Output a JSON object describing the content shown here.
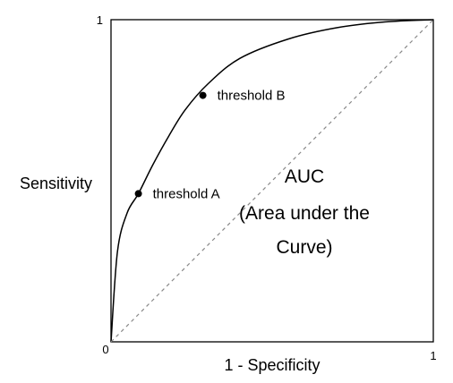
{
  "chart_data": {
    "type": "line",
    "xlabel": "1 - Specificity",
    "ylabel": "Sensitivity",
    "xlim": [
      0,
      1
    ],
    "ylim": [
      0,
      1
    ],
    "ticks": {
      "x_min": "0",
      "x_max": "1",
      "y_max": "1"
    },
    "series": [
      {
        "style": "solid",
        "color": "#000000",
        "x": [
          0,
          0.02,
          0.05,
          0.085,
          0.13,
          0.18,
          0.23,
          0.3,
          0.4,
          0.55,
          0.7,
          0.85,
          1.0
        ],
        "y": [
          0,
          0.28,
          0.4,
          0.46,
          0.55,
          0.64,
          0.72,
          0.8,
          0.88,
          0.94,
          0.975,
          0.993,
          1.0
        ]
      },
      {
        "style": "dashed",
        "color": "#888888",
        "x": [
          0,
          1
        ],
        "y": [
          0,
          1
        ]
      }
    ],
    "points": [
      {
        "label": "threshold A",
        "x": 0.085,
        "y": 0.46
      },
      {
        "label": "threshold B",
        "x": 0.285,
        "y": 0.765
      }
    ],
    "annotation": [
      "AUC",
      "(Area under the",
      "Curve)"
    ]
  }
}
